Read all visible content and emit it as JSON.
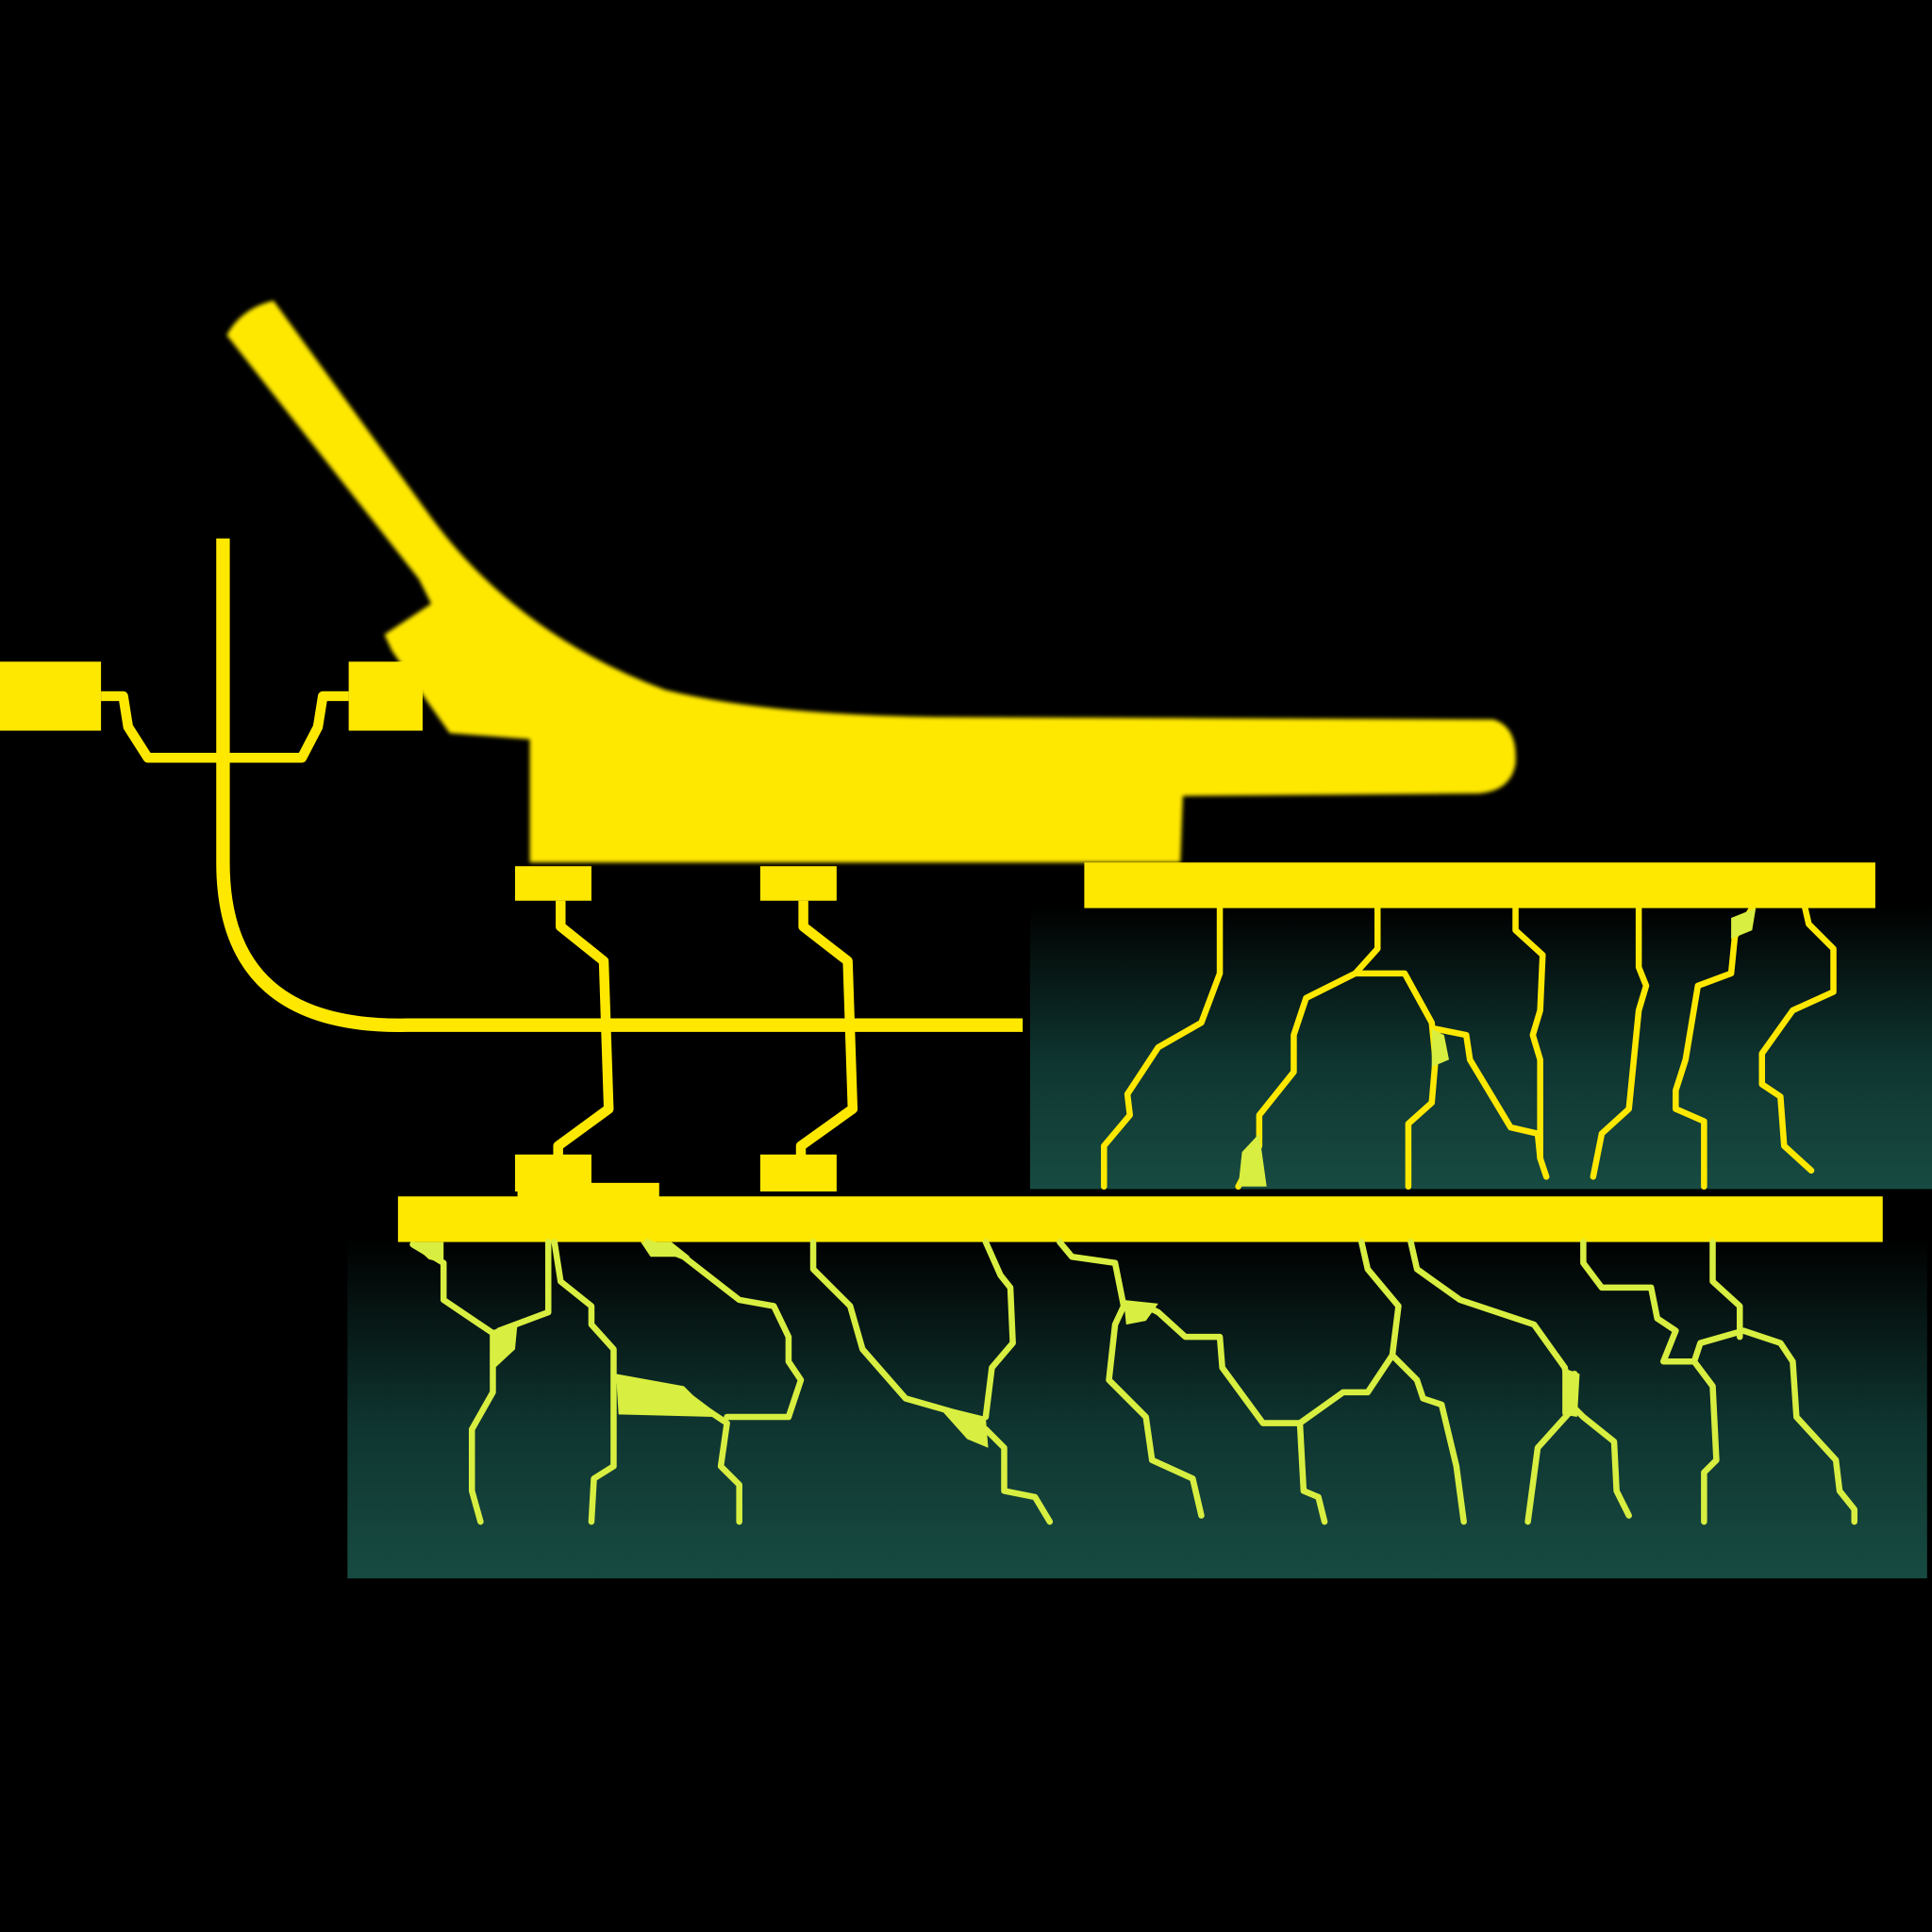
{
  "colors": {
    "background": "#000000",
    "trace": "#FFE800",
    "trace_light": "#D8EE40",
    "panel_top": "#000000",
    "panel_bottom": "#164A40"
  },
  "scene": {
    "description_text": ""
  }
}
